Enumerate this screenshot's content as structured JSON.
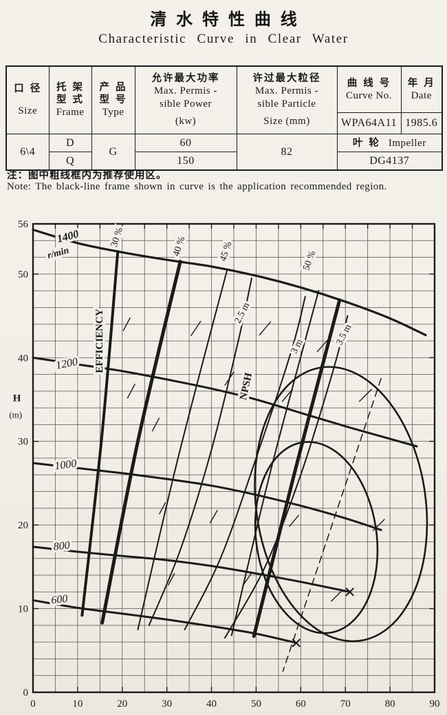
{
  "title_cn": "清水特性曲线",
  "title_en": "Characteristic Curve in Clear Water",
  "note_cn": "注：图中粗线框内为推荐使用区。",
  "note_en": "Note: The black-line frame shown in curve is the application recommended region.",
  "spec_table": {
    "size": {
      "cn": "口 径",
      "en": "Size",
      "value": "6\\4"
    },
    "frame": {
      "cn1": "托 架",
      "cn2": "型 式",
      "en": "Frame",
      "values": [
        "D",
        "Q"
      ]
    },
    "type": {
      "cn1": "产 品",
      "cn2": "型 号",
      "en": "Type",
      "value": "G"
    },
    "power": {
      "cn": "允许最大功率",
      "en1": "Max. Permis -",
      "en2": "sible Power",
      "en3": "(kw)",
      "values": [
        "60",
        "150"
      ]
    },
    "particle": {
      "cn": "许过最大粒径",
      "en1": "Max. Permis -",
      "en2": "sible Particle",
      "en3": "Size (mm)",
      "value": "82"
    },
    "curve_no": {
      "cn": "曲 线 号",
      "en": "Curve No.",
      "value": "WPA64A11"
    },
    "date": {
      "cn": "年 月",
      "en": "Date",
      "value": "1985.6"
    },
    "impeller": {
      "cn": "叶 轮",
      "en": "Impeller",
      "value": "DG4137"
    }
  },
  "chart_data": {
    "type": "line",
    "ylabel": "H (m)",
    "xlim": [
      0,
      90
    ],
    "ylim": [
      0,
      56
    ],
    "x_ticks": [
      0,
      10,
      20,
      30,
      40,
      50,
      60,
      70,
      80,
      90
    ],
    "y_ticks": [
      0,
      10,
      20,
      30,
      40,
      50,
      56
    ],
    "grid": {
      "x_step": 5,
      "y_step": 2,
      "color": "#55524c"
    },
    "ink": "#1b1b1b",
    "paper": "#f2efe8",
    "speed_curves": [
      {
        "name": "1400 r/min",
        "rpm": 1400,
        "width": 3.2,
        "points": [
          [
            0,
            55.3
          ],
          [
            10,
            53.7
          ],
          [
            20,
            52.6
          ],
          [
            30,
            51.7
          ],
          [
            40,
            50.9
          ],
          [
            50,
            49.8
          ],
          [
            60,
            48.4
          ],
          [
            70,
            46.7
          ],
          [
            80,
            44.7
          ],
          [
            88,
            42.7
          ]
        ]
      },
      {
        "name": "1200 r/min",
        "rpm": 1200,
        "width": 3,
        "points": [
          [
            0,
            40
          ],
          [
            10,
            39.2
          ],
          [
            20,
            38.4
          ],
          [
            30,
            37.4
          ],
          [
            40,
            36.3
          ],
          [
            50,
            35
          ],
          [
            60,
            33.4
          ],
          [
            70,
            31.8
          ],
          [
            80,
            30.3
          ],
          [
            86,
            29.4
          ]
        ]
      },
      {
        "name": "1000 r/min",
        "rpm": 1000,
        "width": 3,
        "points": [
          [
            0,
            27.4
          ],
          [
            10,
            26.8
          ],
          [
            20,
            26.2
          ],
          [
            30,
            25.5
          ],
          [
            40,
            24.7
          ],
          [
            50,
            23.6
          ],
          [
            60,
            22.3
          ],
          [
            70,
            20.8
          ],
          [
            78,
            19.4
          ]
        ]
      },
      {
        "name": "800 r/min",
        "rpm": 800,
        "width": 3,
        "marker": "x",
        "points": [
          [
            0,
            17.4
          ],
          [
            10,
            16.8
          ],
          [
            20,
            16.3
          ],
          [
            30,
            15.8
          ],
          [
            40,
            15.1
          ],
          [
            50,
            14.2
          ],
          [
            60,
            13.2
          ],
          [
            71,
            12
          ]
        ]
      },
      {
        "name": "600 r/min",
        "rpm": 600,
        "width": 3,
        "marker": "x",
        "points": [
          [
            0,
            11
          ],
          [
            10,
            10.1
          ],
          [
            20,
            9.4
          ],
          [
            30,
            8.7
          ],
          [
            40,
            7.9
          ],
          [
            50,
            7
          ],
          [
            59,
            5.9
          ]
        ]
      }
    ],
    "efficiency_lines": [
      {
        "name": "30%",
        "width": 4,
        "points": [
          [
            19,
            52.7
          ],
          [
            15.5,
            31
          ],
          [
            11,
            9.2
          ]
        ]
      },
      {
        "name": "40%",
        "width": 5,
        "points": [
          [
            33,
            51.5
          ],
          [
            23.5,
            30
          ],
          [
            15.5,
            8.3
          ]
        ]
      },
      {
        "name": "45%",
        "width": 2,
        "points": [
          [
            43.5,
            50.5
          ],
          [
            32.5,
            28
          ],
          [
            23.5,
            7.5
          ]
        ]
      },
      {
        "name": "50%",
        "width": 2,
        "points": [
          [
            64,
            48
          ],
          [
            53.5,
            27
          ],
          [
            44.5,
            6.8
          ]
        ]
      }
    ],
    "recommended_region_boundary": {
      "name": "recommended-region-right-edge",
      "width": 5,
      "points": [
        [
          68.7,
          46.9
        ],
        [
          58.5,
          26
        ],
        [
          49.5,
          6.7
        ]
      ]
    },
    "npsh_lines": [
      {
        "name": "2.5 m",
        "width": 2,
        "points": [
          [
            26,
            8
          ],
          [
            33,
            17
          ],
          [
            40,
            29
          ],
          [
            46,
            42
          ],
          [
            49,
            49.5
          ]
        ]
      },
      {
        "name": "3 m",
        "width": 2,
        "points": [
          [
            34,
            7.5
          ],
          [
            42,
            16
          ],
          [
            50,
            28
          ],
          [
            58,
            41
          ],
          [
            61,
            47.3
          ]
        ]
      },
      {
        "name": "3.5 m",
        "width": 2,
        "points": [
          [
            43,
            6.5
          ],
          [
            52,
            15
          ],
          [
            60,
            26
          ],
          [
            67,
            38
          ],
          [
            70.5,
            45
          ]
        ]
      }
    ],
    "island_axis": {
      "name": "island-axis-dashed",
      "width": 1.5,
      "dash": "10 7",
      "points": [
        [
          78,
          37.5
        ],
        [
          56,
          2.5
        ]
      ]
    },
    "efficiency_islands": [
      {
        "name": "outer-island",
        "cq": 69,
        "ch": 22.5,
        "rq": 19,
        "rh": 16.5,
        "rot": -8,
        "width": 2.6
      },
      {
        "name": "inner-island",
        "cq": 63.5,
        "ch": 18.5,
        "rq": 13.5,
        "rh": 11.5,
        "rot": -8,
        "width": 2.6
      }
    ],
    "dashes": [
      [
        22,
        36,
        -62,
        24
      ],
      [
        27.5,
        32,
        -62,
        22
      ],
      [
        36.5,
        43.5,
        -56,
        26
      ],
      [
        44,
        37.5,
        -56,
        24
      ],
      [
        40.5,
        21,
        -60,
        22
      ],
      [
        31,
        13.5,
        -62,
        20
      ],
      [
        52,
        43.5,
        -50,
        26
      ],
      [
        57,
        35.5,
        -50,
        24
      ],
      [
        65,
        41.5,
        -48,
        26
      ],
      [
        74.5,
        35.5,
        -45,
        26
      ],
      [
        48,
        13.5,
        -55,
        22
      ],
      [
        68,
        11.5,
        -45,
        22
      ],
      [
        77.5,
        20,
        -45,
        24
      ],
      [
        58.5,
        20.5,
        -50,
        22
      ],
      [
        21,
        44,
        -62,
        22
      ],
      [
        29,
        22,
        -62,
        20
      ]
    ],
    "labels": [
      {
        "text": "1400",
        "q": 8,
        "h": 54.1,
        "rot": -15,
        "size": 16,
        "bold": true,
        "italic": true
      },
      {
        "text": "r/min",
        "q": 5.8,
        "h": 52.2,
        "rot": -15,
        "size": 14,
        "bold": true,
        "italic": true
      },
      {
        "text": "1200",
        "q": 7.7,
        "h": 38.9,
        "rot": -11,
        "size": 16,
        "bold": false,
        "italic": true
      },
      {
        "text": "1000",
        "q": 7.4,
        "h": 26.8,
        "rot": -8,
        "size": 16,
        "bold": false,
        "italic": true
      },
      {
        "text": "800",
        "q": 6.5,
        "h": 17.1,
        "rot": -6,
        "size": 16,
        "bold": false,
        "italic": true
      },
      {
        "text": "600",
        "q": 6,
        "h": 10.7,
        "rot": -6,
        "size": 16,
        "bold": false,
        "italic": true
      },
      {
        "text": "30 %",
        "q": 19.4,
        "h": 54.3,
        "rot": -72,
        "size": 14,
        "bold": false,
        "italic": false
      },
      {
        "text": "40 %",
        "q": 33.3,
        "h": 53.2,
        "rot": -72,
        "size": 14,
        "bold": false,
        "italic": false
      },
      {
        "text": "45 %",
        "q": 43.8,
        "h": 52.6,
        "rot": -72,
        "size": 14,
        "bold": false,
        "italic": false
      },
      {
        "text": "50 %",
        "q": 62.5,
        "h": 51.5,
        "rot": -70,
        "size": 14,
        "bold": false,
        "italic": false
      },
      {
        "text": "EFFICIENCY",
        "q": 15.6,
        "h": 42,
        "rot": -90,
        "size": 15,
        "bold": true,
        "italic": false
      },
      {
        "text": "NPSH",
        "q": 48.4,
        "h": 36.5,
        "rot": -78,
        "size": 15,
        "bold": true,
        "italic": false
      },
      {
        "text": "2.5 m",
        "q": 47.4,
        "h": 45.2,
        "rot": -63,
        "size": 14,
        "bold": false,
        "italic": false
      },
      {
        "text": "3 m",
        "q": 59.7,
        "h": 41.2,
        "rot": -63,
        "size": 14,
        "bold": false,
        "italic": false
      },
      {
        "text": "3.5 m",
        "q": 70.2,
        "h": 42.6,
        "rot": -63,
        "size": 14,
        "bold": false,
        "italic": false
      },
      {
        "text": "H",
        "q": -3.6,
        "h": 34.8,
        "rot": 0,
        "size": 15,
        "bold": true,
        "italic": false,
        "bg": false
      },
      {
        "text": "(m)",
        "q": -3.9,
        "h": 32.8,
        "rot": 0,
        "size": 13,
        "bold": false,
        "italic": false,
        "bg": false
      }
    ]
  }
}
